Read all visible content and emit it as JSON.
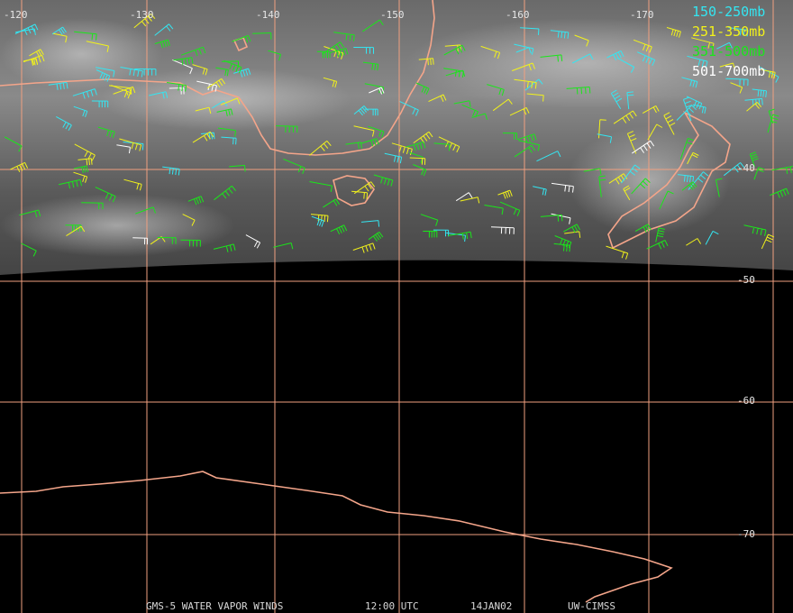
{
  "longitude_labels": [
    "-120",
    "-130",
    "-140",
    "-150",
    "-160",
    "-170"
  ],
  "latitude_labels": [
    "-40",
    "-50",
    "-60",
    "-70"
  ],
  "legend": [
    {
      "label": "150-250mb",
      "color": "#33e6f2"
    },
    {
      "label": "251-350mb",
      "color": "#f2f21a"
    },
    {
      "label": "351-500mb",
      "color": "#1ae61a"
    },
    {
      "label": "501-700mb",
      "color": "#ffffff"
    }
  ],
  "footer": [
    "GMS-5 WATER VAPOR WINDS",
    "12:00 UTC",
    "14JAN02",
    "UW-CIMSS"
  ]
}
